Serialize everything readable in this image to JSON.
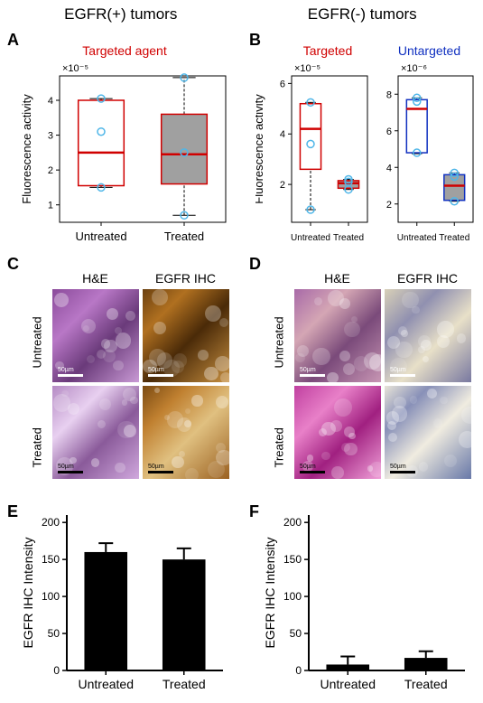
{
  "header": {
    "left_title": "EGFR(+) tumors",
    "right_title": "EGFR(-) tumors"
  },
  "panelA": {
    "label": "A",
    "subtitle": "Targeted agent",
    "subtitle_color": "#d00000",
    "boxplot": {
      "type": "boxplot",
      "exponent_label": "×10⁻⁵",
      "ylabel": "Fluorescence activity",
      "categories": [
        "Untreated",
        "Treated"
      ],
      "ylim": [
        0.5,
        4.7
      ],
      "yticks": [
        1,
        2,
        3,
        4
      ],
      "boxes": [
        {
          "q1": 1.55,
          "median": 2.5,
          "q3": 4.0,
          "whisker_lo": 1.5,
          "whisker_hi": 4.05,
          "fill": "none",
          "stroke": "#d00000",
          "points": [
            1.5,
            3.1,
            4.05
          ]
        },
        {
          "q1": 1.6,
          "median": 2.45,
          "q3": 3.6,
          "whisker_lo": 0.7,
          "whisker_hi": 4.65,
          "fill": "#a0a0a0",
          "stroke": "#d00000",
          "points": [
            0.7,
            2.5,
            4.65
          ]
        }
      ],
      "median_color": "#d00000",
      "point_color": "#4fb6e8",
      "axis_color": "#000000",
      "tick_fontsize": 11,
      "label_fontsize": 13
    }
  },
  "panelB": {
    "label": "B",
    "leftplot": {
      "subtitle": "Targeted",
      "subtitle_color": "#d00000",
      "type": "boxplot",
      "exponent_label": "×10⁻⁵",
      "ylabel": "Fluorescence activity",
      "categories": [
        "Untreated",
        "Treated"
      ],
      "ylim": [
        0.5,
        6.3
      ],
      "yticks": [
        2,
        4,
        6
      ],
      "boxes": [
        {
          "q1": 2.6,
          "median": 4.2,
          "q3": 5.2,
          "whisker_lo": 1.0,
          "whisker_hi": 5.25,
          "fill": "none",
          "stroke": "#d00000",
          "points": [
            1.0,
            3.6,
            5.25
          ]
        },
        {
          "q1": 1.85,
          "median": 2.05,
          "q3": 2.15,
          "whisker_lo": 1.8,
          "whisker_hi": 2.2,
          "fill": "#a0a0a0",
          "stroke": "#d00000",
          "points": [
            1.8,
            2.1,
            2.2
          ]
        }
      ],
      "median_color": "#d00000",
      "point_color": "#4fb6e8"
    },
    "rightplot": {
      "subtitle": "Untargeted",
      "subtitle_color": "#1030c0",
      "type": "boxplot",
      "exponent_label": "×10⁻⁶",
      "categories": [
        "Untreated",
        "Treated"
      ],
      "ylim": [
        1.0,
        9.0
      ],
      "yticks": [
        2,
        4,
        6,
        8
      ],
      "boxes": [
        {
          "q1": 4.8,
          "median": 7.2,
          "q3": 7.7,
          "whisker_lo": 4.75,
          "whisker_hi": 7.8,
          "fill": "none",
          "stroke": "#1030c0",
          "points": [
            4.8,
            7.6,
            7.8
          ]
        },
        {
          "q1": 2.2,
          "median": 3.0,
          "q3": 3.6,
          "whisker_lo": 2.15,
          "whisker_hi": 3.7,
          "fill": "#a0a0a0",
          "stroke": "#1030c0",
          "points": [
            2.15,
            3.5,
            3.7
          ]
        }
      ],
      "median_color": "#d00000",
      "point_color": "#4fb6e8"
    }
  },
  "panelC": {
    "label": "C",
    "columns": [
      "H&E",
      "EGFR IHC"
    ],
    "rows": [
      "Untreated",
      "Treated"
    ],
    "scalebar_text": "50µm",
    "images": [
      {
        "bg": "linear-gradient(135deg,#8a4a9a 0%,#b877c6 30%,#6a3a7a 60%,#c99ad5 100%)",
        "scalebar": "light"
      },
      {
        "bg": "linear-gradient(135deg,#6b4010 0%,#b07020 25%,#4a2a08 55%,#c89040 100%)",
        "scalebar": "light"
      },
      {
        "bg": "linear-gradient(135deg,#b58bc4 0%,#e8d0f0 30%,#8a5a9a 60%,#d0a8dd 100%)",
        "scalebar": "dark"
      },
      {
        "bg": "linear-gradient(135deg,#7a4a12 0%,#c08030 25%,#e0c080 55%,#9a6020 100%)",
        "scalebar": "dark"
      }
    ]
  },
  "panelD": {
    "label": "D",
    "columns": [
      "H&E",
      "EGFR IHC"
    ],
    "rows": [
      "Untreated",
      "Treated"
    ],
    "scalebar_text": "50µm",
    "images": [
      {
        "bg": "linear-gradient(135deg,#a86aa8 0%,#d4a6b4 30%,#7a4a7a 60%,#c896b4 100%)",
        "scalebar": "light"
      },
      {
        "bg": "linear-gradient(135deg,#d8d0b8 0%,#9090b0 30%,#e8e0c8 60%,#7878a0 100%)",
        "scalebar": "light"
      },
      {
        "bg": "linear-gradient(135deg,#c040a0 0%,#e880c8 30%,#a02080 60%,#f0a0d8 100%)",
        "scalebar": "dark"
      },
      {
        "bg": "linear-gradient(135deg,#e8e4d8 0%,#8890b8 25%,#f0ece0 55%,#6878a8 100%)",
        "scalebar": "dark"
      }
    ]
  },
  "panelE": {
    "label": "E",
    "barchart": {
      "type": "bar",
      "categories": [
        "Untreated",
        "Treated"
      ],
      "values": [
        160,
        150
      ],
      "errors": [
        12,
        15
      ],
      "ylabel": "EGFR IHC Intensity",
      "ylim": [
        0,
        210
      ],
      "yticks": [
        0,
        50,
        100,
        150,
        200
      ],
      "bar_color": "#000000",
      "axis_color": "#000000",
      "bar_width": 0.55,
      "label_fontsize": 13,
      "tick_fontsize": 12
    }
  },
  "panelF": {
    "label": "F",
    "barchart": {
      "type": "bar",
      "categories": [
        "Untreated",
        "Treated"
      ],
      "values": [
        8,
        17
      ],
      "errors": [
        11,
        9
      ],
      "ylabel": "EGFR IHC Intensity",
      "ylim": [
        0,
        210
      ],
      "yticks": [
        0,
        50,
        100,
        150,
        200
      ],
      "bar_color": "#000000",
      "axis_color": "#000000",
      "bar_width": 0.55
    }
  }
}
